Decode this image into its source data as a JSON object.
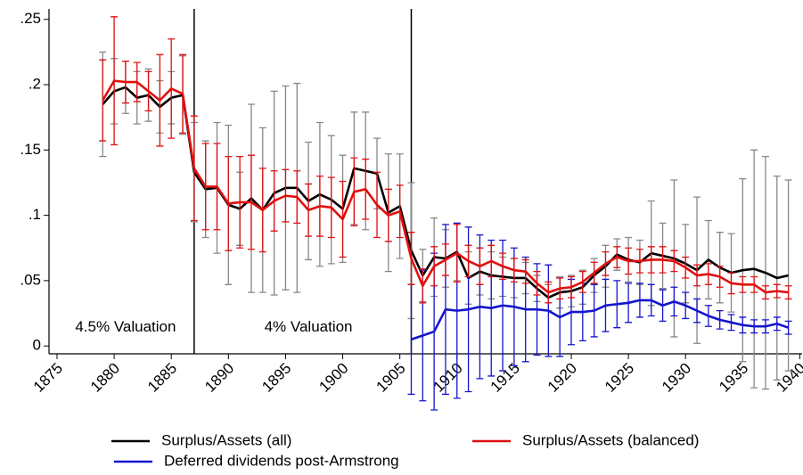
{
  "chart_data": {
    "type": "line",
    "xlim": [
      1874.3,
      1940.2
    ],
    "ylim": [
      -0.006,
      0.258
    ],
    "xticks": [
      1875,
      1880,
      1885,
      1890,
      1895,
      1900,
      1905,
      1910,
      1915,
      1920,
      1925,
      1930,
      1935,
      1940
    ],
    "yticks": [
      0,
      {
        "value": 0.05,
        "label": ".05"
      },
      {
        "value": 0.1,
        "label": ".1"
      },
      {
        "value": 0.15,
        "label": ".15"
      },
      {
        "value": 0.2,
        "label": ".2"
      },
      {
        "value": 0.25,
        "label": ".25"
      }
    ],
    "vlines": [
      1887,
      1906
    ],
    "annotations": [
      {
        "text": "4.5% Valuation",
        "x": 1881,
        "y": 0.014
      },
      {
        "text": "4% Valuation",
        "x": 1897,
        "y": 0.014
      }
    ],
    "grid": false,
    "series": [
      {
        "name": "Surplus/Assets (all)",
        "color": "#000000",
        "error_color": "#888888",
        "x": [
          1879,
          1880,
          1881,
          1882,
          1883,
          1884,
          1885,
          1886,
          1887,
          1888,
          1889,
          1890,
          1891,
          1892,
          1893,
          1894,
          1895,
          1896,
          1897,
          1898,
          1899,
          1900,
          1901,
          1902,
          1903,
          1904,
          1905,
          1906,
          1907,
          1908,
          1909,
          1910,
          1911,
          1912,
          1913,
          1914,
          1915,
          1916,
          1917,
          1918,
          1919,
          1920,
          1921,
          1922,
          1923,
          1924,
          1925,
          1926,
          1927,
          1928,
          1929,
          1930,
          1931,
          1932,
          1933,
          1934,
          1935,
          1936,
          1937,
          1938,
          1939
        ],
        "values": [
          0.185,
          0.195,
          0.198,
          0.19,
          0.192,
          0.183,
          0.19,
          0.192,
          0.133,
          0.12,
          0.121,
          0.108,
          0.105,
          0.113,
          0.104,
          0.117,
          0.121,
          0.121,
          0.111,
          0.116,
          0.112,
          0.105,
          0.136,
          0.134,
          0.132,
          0.102,
          0.107,
          0.073,
          0.054,
          0.068,
          0.067,
          0.072,
          0.052,
          0.057,
          0.054,
          0.053,
          0.052,
          0.052,
          0.044,
          0.037,
          0.041,
          0.042,
          0.045,
          0.054,
          0.061,
          0.07,
          0.066,
          0.064,
          0.071,
          0.069,
          0.067,
          0.063,
          0.058,
          0.066,
          0.06,
          0.056,
          0.058,
          0.059,
          0.056,
          0.052,
          0.054
        ],
        "errors": [
          0.04,
          0.025,
          0.02,
          0.02,
          0.02,
          0.02,
          0.02,
          0.03,
          0.038,
          0.037,
          0.05,
          0.061,
          0.028,
          0.072,
          0.063,
          0.078,
          0.078,
          0.08,
          0.045,
          0.055,
          0.049,
          0.041,
          0.043,
          0.045,
          0.027,
          0.045,
          0.04,
          0.052,
          0.02,
          0.03,
          0.022,
          0.022,
          0.02,
          0.018,
          0.018,
          0.015,
          0.015,
          0.012,
          0.01,
          0.01,
          0.012,
          0.012,
          0.013,
          0.013,
          0.016,
          0.012,
          0.017,
          0.017,
          0.04,
          0.025,
          0.06,
          0.03,
          0.056,
          0.03,
          0.027,
          0.03,
          0.07,
          0.091,
          0.089,
          0.078,
          0.073
        ]
      },
      {
        "name": "Deferred dividends post-Armstrong",
        "color": "#1515cc",
        "x": [
          1906,
          1907,
          1908,
          1909,
          1910,
          1911,
          1912,
          1913,
          1914,
          1915,
          1916,
          1917,
          1918,
          1919,
          1920,
          1921,
          1922,
          1923,
          1924,
          1925,
          1926,
          1927,
          1928,
          1929,
          1930,
          1931,
          1932,
          1933,
          1934,
          1935,
          1936,
          1937,
          1938,
          1939
        ],
        "values": [
          0.005,
          0.008,
          0.011,
          0.028,
          0.027,
          0.028,
          0.03,
          0.029,
          0.031,
          0.03,
          0.028,
          0.028,
          0.027,
          0.022,
          0.026,
          0.026,
          0.027,
          0.031,
          0.032,
          0.033,
          0.035,
          0.035,
          0.031,
          0.034,
          0.031,
          0.027,
          0.023,
          0.02,
          0.018,
          0.016,
          0.015,
          0.015,
          0.017,
          0.014
        ],
        "errors": [
          0.042,
          0.05,
          0.06,
          0.065,
          0.067,
          0.063,
          0.055,
          0.052,
          0.05,
          0.045,
          0.04,
          0.035,
          0.035,
          0.03,
          0.025,
          0.022,
          0.02,
          0.02,
          0.018,
          0.015,
          0.013,
          0.012,
          0.012,
          0.011,
          0.01,
          0.009,
          0.008,
          0.007,
          0.006,
          0.006,
          0.005,
          0.005,
          0.005,
          0.005
        ]
      },
      {
        "name": "Surplus/Assets (balanced)",
        "color": "#e01010",
        "x": [
          1879,
          1880,
          1881,
          1882,
          1883,
          1884,
          1885,
          1886,
          1887,
          1888,
          1889,
          1890,
          1891,
          1892,
          1893,
          1894,
          1895,
          1896,
          1897,
          1898,
          1899,
          1900,
          1901,
          1902,
          1903,
          1904,
          1905,
          1906,
          1907,
          1908,
          1909,
          1910,
          1911,
          1912,
          1913,
          1914,
          1915,
          1916,
          1917,
          1918,
          1919,
          1920,
          1921,
          1922,
          1923,
          1924,
          1925,
          1926,
          1927,
          1928,
          1929,
          1930,
          1931,
          1932,
          1933,
          1934,
          1935,
          1936,
          1937,
          1938,
          1939
        ],
        "values": [
          0.188,
          0.203,
          0.202,
          0.202,
          0.195,
          0.188,
          0.197,
          0.193,
          0.136,
          0.122,
          0.122,
          0.109,
          0.11,
          0.11,
          0.104,
          0.111,
          0.115,
          0.114,
          0.104,
          0.107,
          0.106,
          0.097,
          0.118,
          0.12,
          0.108,
          0.1,
          0.103,
          0.067,
          0.046,
          0.061,
          0.066,
          0.071,
          0.065,
          0.061,
          0.065,
          0.061,
          0.058,
          0.057,
          0.048,
          0.041,
          0.044,
          0.045,
          0.049,
          0.056,
          0.063,
          0.068,
          0.065,
          0.065,
          0.066,
          0.066,
          0.065,
          0.06,
          0.054,
          0.055,
          0.053,
          0.048,
          0.047,
          0.047,
          0.041,
          0.042,
          0.041
        ],
        "errors": [
          0.031,
          0.049,
          0.016,
          0.015,
          0.015,
          0.035,
          0.038,
          0.03,
          0.04,
          0.033,
          0.033,
          0.036,
          0.035,
          0.036,
          0.032,
          0.023,
          0.02,
          0.02,
          0.02,
          0.023,
          0.023,
          0.029,
          0.026,
          0.023,
          0.025,
          0.02,
          0.02,
          0.02,
          0.013,
          0.015,
          0.012,
          0.022,
          0.012,
          0.014,
          0.012,
          0.01,
          0.009,
          0.009,
          0.009,
          0.008,
          0.008,
          0.008,
          0.008,
          0.008,
          0.009,
          0.008,
          0.01,
          0.009,
          0.01,
          0.01,
          0.008,
          0.008,
          0.008,
          0.008,
          0.008,
          0.008,
          0.006,
          0.006,
          0.005,
          0.005,
          0.005
        ]
      }
    ]
  }
}
